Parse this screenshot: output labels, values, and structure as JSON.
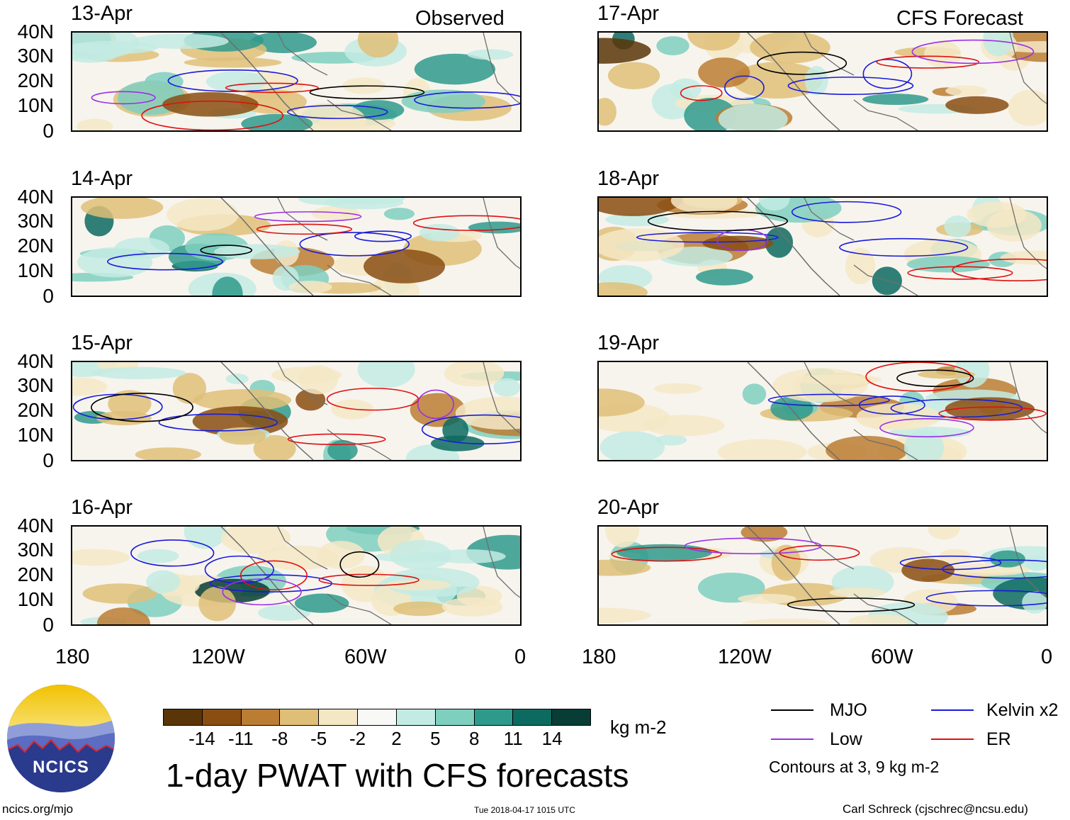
{
  "corner_labels": {
    "left": "Observed",
    "right": "CFS Forecast"
  },
  "panels_left": [
    {
      "date": "13-Apr"
    },
    {
      "date": "14-Apr"
    },
    {
      "date": "15-Apr"
    },
    {
      "date": "16-Apr"
    }
  ],
  "panels_right": [
    {
      "date": "17-Apr"
    },
    {
      "date": "18-Apr"
    },
    {
      "date": "19-Apr"
    },
    {
      "date": "20-Apr"
    }
  ],
  "lat_labels": [
    "40N",
    "30N",
    "20N",
    "10N",
    "0"
  ],
  "lon_labels": [
    "180",
    "120W",
    "60W",
    "0"
  ],
  "colorbar": {
    "labels": [
      "-14",
      "-11",
      "-8",
      "-5",
      "-2",
      "2",
      "5",
      "8",
      "11",
      "14"
    ],
    "colors": [
      "#5a3508",
      "#8a4e12",
      "#bb7d33",
      "#dfbf78",
      "#f4e7c5",
      "#f8f8f6",
      "#c3ebe3",
      "#7fcfbf",
      "#2f9a8c",
      "#0d6a60",
      "#073d34"
    ],
    "unit": "kg m-2"
  },
  "title": "1-day PWAT with CFS forecasts",
  "legend": {
    "mjo": {
      "label": "MJO",
      "color": "#000000"
    },
    "kelvin": {
      "label": "Kelvin x2",
      "color": "#1a1adb"
    },
    "low": {
      "label": "Low",
      "color": "#9b30e6"
    },
    "er": {
      "label": "ER",
      "color": "#e01010"
    },
    "note": "Contours at 3, 9 kg m-2"
  },
  "footer": {
    "left": "ncics.org/mjo",
    "center": "Tue 2018-04-17 1015 UTC",
    "right": "Carl Schreck (cjschrec@ncsu.edu)"
  },
  "logo": {
    "text": "NCICS"
  }
}
